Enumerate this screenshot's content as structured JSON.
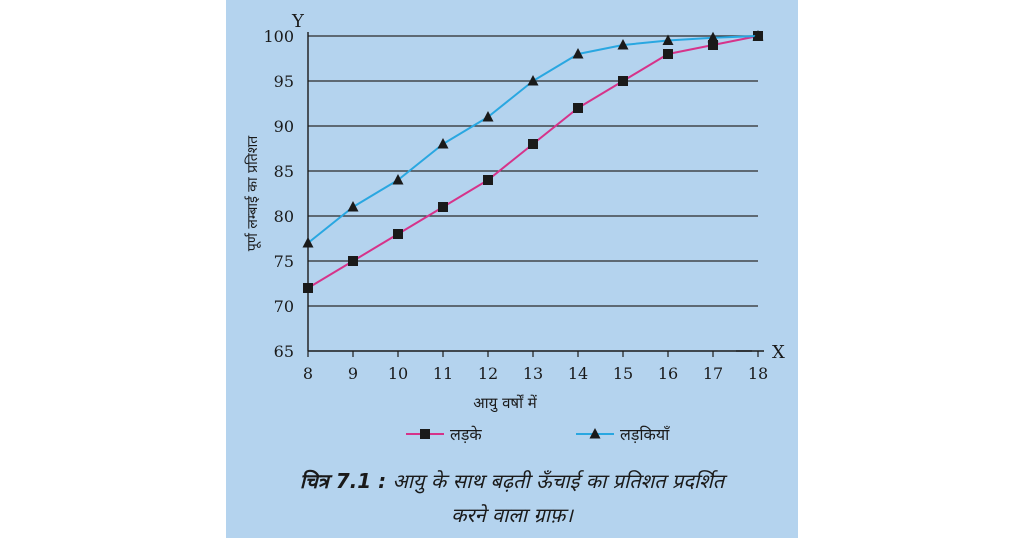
{
  "chart_data": {
    "type": "line",
    "x": [
      8,
      9,
      10,
      11,
      12,
      13,
      14,
      15,
      16,
      17,
      18
    ],
    "ylim": [
      65,
      100
    ],
    "xlim": [
      8,
      18
    ],
    "yticks": [
      65,
      70,
      75,
      80,
      85,
      90,
      95,
      100
    ],
    "xticks": [
      8,
      9,
      10,
      11,
      12,
      13,
      14,
      15,
      16,
      17,
      18
    ],
    "y_axis_letter": "Y",
    "x_axis_letter": "X",
    "ylabel": "पूर्ण लम्बाई का प्रतिशत",
    "xlabel": "आयु वर्षों में",
    "grid": "horizontal",
    "legend_position": "bottom",
    "series": [
      {
        "name": "लड़के",
        "marker": "square",
        "color": "#d6338a",
        "values": [
          72,
          75,
          78,
          81,
          84,
          88,
          92,
          95,
          98,
          99,
          100
        ]
      },
      {
        "name": "लड़कियाँ",
        "marker": "triangle",
        "color": "#29a7e1",
        "values": [
          77,
          81,
          84,
          88,
          91,
          95,
          98,
          99,
          99.5,
          99.8,
          100
        ]
      }
    ]
  },
  "caption": {
    "label": "चित्र 7.1 :",
    "line1": "आयु के साथ बढ़ती ऊँचाई का प्रतिशत प्रदर्शित",
    "line2": "करने वाला ग्राफ़।"
  }
}
